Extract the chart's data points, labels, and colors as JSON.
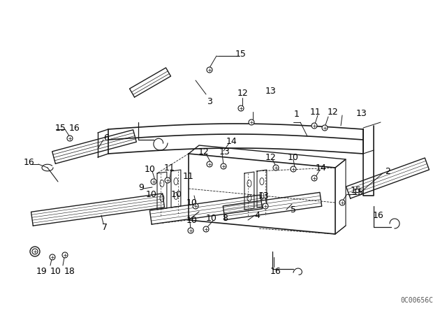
{
  "bg_color": "#ffffff",
  "line_color": "#1a1a1a",
  "text_color": "#000000",
  "watermark": "0C00656C",
  "fig_width": 6.4,
  "fig_height": 4.48,
  "dpi": 100
}
